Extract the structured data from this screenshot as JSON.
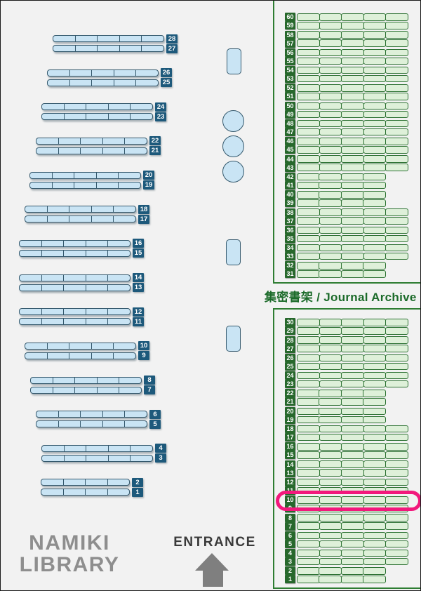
{
  "map_title": {
    "line1": "NAMIKI",
    "line2": "LIBRARY"
  },
  "entrance": {
    "label": "ENTRANCE",
    "icon": "arrow-up-icon"
  },
  "archive_section": {
    "label": "集密書架 / Journal Archive"
  },
  "highlight": {
    "target_row": 10,
    "section": "archive_bottom"
  },
  "colors": {
    "background": "#f2f2f2",
    "shelf_blue_fill": "#c9e4f4",
    "shelf_blue_border": "#35596d",
    "badge_blue_bg": "#1d597b",
    "shelf_green_fill": "#def0d9",
    "shelf_green_border": "#2d7233",
    "badge_green_bg": "#27682c",
    "archive_border": "#2e7d32",
    "archive_text": "#1c6b2a",
    "highlight_pink": "#f2187c",
    "title_gray": "#8e8e8e",
    "entrance_text": "#3a3a3a",
    "arrow_gray": "#7f7f7f"
  },
  "left_section": {
    "rows": [
      {
        "num": 28,
        "size": "full"
      },
      {
        "num": 27,
        "size": "full"
      },
      {
        "num": 26,
        "size": "full"
      },
      {
        "num": 25,
        "size": "full"
      },
      {
        "num": 24,
        "size": "full"
      },
      {
        "num": 23,
        "size": "full"
      },
      {
        "num": 22,
        "size": "full"
      },
      {
        "num": 21,
        "size": "full"
      },
      {
        "num": 20,
        "size": "full"
      },
      {
        "num": 19,
        "size": "full"
      },
      {
        "num": 18,
        "size": "full"
      },
      {
        "num": 17,
        "size": "full"
      },
      {
        "num": 16,
        "size": "full"
      },
      {
        "num": 15,
        "size": "full"
      },
      {
        "num": 14,
        "size": "full"
      },
      {
        "num": 13,
        "size": "full"
      },
      {
        "num": 12,
        "size": "full"
      },
      {
        "num": 11,
        "size": "full"
      },
      {
        "num": 10,
        "size": "full"
      },
      {
        "num": 9,
        "size": "full"
      },
      {
        "num": 8,
        "size": "full"
      },
      {
        "num": 7,
        "size": "full"
      },
      {
        "num": 6,
        "size": "full"
      },
      {
        "num": 5,
        "size": "full"
      },
      {
        "num": 4,
        "size": "full"
      },
      {
        "num": 3,
        "size": "full"
      },
      {
        "num": 2,
        "size": "short"
      },
      {
        "num": 1,
        "size": "short"
      }
    ]
  },
  "archive_top": {
    "rows": [
      {
        "num": 60,
        "size": "full"
      },
      {
        "num": 59,
        "size": "full"
      },
      {
        "num": 58,
        "size": "full"
      },
      {
        "num": 57,
        "size": "full"
      },
      {
        "num": 56,
        "size": "full"
      },
      {
        "num": 55,
        "size": "full"
      },
      {
        "num": 54,
        "size": "full"
      },
      {
        "num": 53,
        "size": "full"
      },
      {
        "num": 52,
        "size": "full"
      },
      {
        "num": 51,
        "size": "full"
      },
      {
        "num": 50,
        "size": "full"
      },
      {
        "num": 49,
        "size": "full"
      },
      {
        "num": 48,
        "size": "full"
      },
      {
        "num": 47,
        "size": "full"
      },
      {
        "num": 46,
        "size": "full"
      },
      {
        "num": 45,
        "size": "full"
      },
      {
        "num": 44,
        "size": "full"
      },
      {
        "num": 43,
        "size": "full"
      },
      {
        "num": 42,
        "size": "short"
      },
      {
        "num": 41,
        "size": "short"
      },
      {
        "num": 40,
        "size": "short"
      },
      {
        "num": 39,
        "size": "short"
      },
      {
        "num": 38,
        "size": "full"
      },
      {
        "num": 37,
        "size": "full"
      },
      {
        "num": 36,
        "size": "full"
      },
      {
        "num": 35,
        "size": "full"
      },
      {
        "num": 34,
        "size": "full"
      },
      {
        "num": 33,
        "size": "full"
      },
      {
        "num": 32,
        "size": "short"
      },
      {
        "num": 31,
        "size": "short"
      }
    ]
  },
  "archive_bottom": {
    "rows": [
      {
        "num": 30,
        "size": "full"
      },
      {
        "num": 29,
        "size": "full"
      },
      {
        "num": 28,
        "size": "full"
      },
      {
        "num": 27,
        "size": "full"
      },
      {
        "num": 26,
        "size": "full"
      },
      {
        "num": 25,
        "size": "full"
      },
      {
        "num": 24,
        "size": "full"
      },
      {
        "num": 23,
        "size": "full"
      },
      {
        "num": 22,
        "size": "short"
      },
      {
        "num": 21,
        "size": "short"
      },
      {
        "num": 20,
        "size": "short"
      },
      {
        "num": 19,
        "size": "short"
      },
      {
        "num": 18,
        "size": "full"
      },
      {
        "num": 17,
        "size": "full"
      },
      {
        "num": 16,
        "size": "full"
      },
      {
        "num": 15,
        "size": "full"
      },
      {
        "num": 14,
        "size": "full"
      },
      {
        "num": 13,
        "size": "full"
      },
      {
        "num": 12,
        "size": "full"
      },
      {
        "num": 11,
        "size": "full"
      },
      {
        "num": 10,
        "size": "full",
        "highlighted": true
      },
      {
        "num": 9,
        "size": "full"
      },
      {
        "num": 8,
        "size": "full"
      },
      {
        "num": 7,
        "size": "full"
      },
      {
        "num": 6,
        "size": "full"
      },
      {
        "num": 5,
        "size": "full"
      },
      {
        "num": 4,
        "size": "full"
      },
      {
        "num": 3,
        "size": "full"
      },
      {
        "num": 2,
        "size": "short"
      },
      {
        "num": 1,
        "size": "short"
      }
    ]
  }
}
